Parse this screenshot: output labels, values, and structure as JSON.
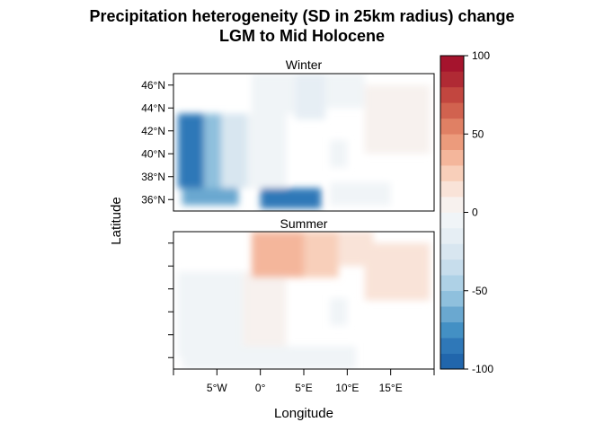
{
  "chart_data": {
    "type": "heatmap",
    "title_line1": "Precipitation heterogeneity (SD in 25km radius) change",
    "title_line2": "LGM to Mid Holocene",
    "xlabel": "Longitude",
    "ylabel": "Latitude",
    "xlim": [
      -10,
      20
    ],
    "ylim": [
      35,
      47
    ],
    "x_ticks": [
      {
        "value": -5,
        "label": "5°W"
      },
      {
        "value": 0,
        "label": "0°"
      },
      {
        "value": 5,
        "label": "5°E"
      },
      {
        "value": 10,
        "label": "10°E"
      },
      {
        "value": 15,
        "label": "15°E"
      }
    ],
    "y_ticks": [
      {
        "value": 36,
        "label": "36°N"
      },
      {
        "value": 38,
        "label": "38°N"
      },
      {
        "value": 40,
        "label": "40°N"
      },
      {
        "value": 42,
        "label": "42°N"
      },
      {
        "value": 44,
        "label": "44°N"
      },
      {
        "value": 46,
        "label": "46°N"
      }
    ],
    "panels": [
      {
        "name": "Winter",
        "regions": [
          {
            "lon": [
              -9.5,
              -6.5
            ],
            "lat": [
              37.0,
              43.5
            ],
            "value": -85
          },
          {
            "lon": [
              -6.5,
              -4.5
            ],
            "lat": [
              37.0,
              43.5
            ],
            "value": -60
          },
          {
            "lon": [
              -4.5,
              -1.5
            ],
            "lat": [
              37.0,
              43.5
            ],
            "value": -25
          },
          {
            "lon": [
              -1.5,
              3.0
            ],
            "lat": [
              37.0,
              43.5
            ],
            "value": -10
          },
          {
            "lon": [
              -9.0,
              -2.5
            ],
            "lat": [
              35.5,
              37.0
            ],
            "value": -70
          },
          {
            "lon": [
              0.0,
              7.0
            ],
            "lat": [
              35.2,
              37.0
            ],
            "value": -85
          },
          {
            "lon": [
              -1.0,
              4.0
            ],
            "lat": [
              43.5,
              47.0
            ],
            "value": -10
          },
          {
            "lon": [
              4.0,
              7.5
            ],
            "lat": [
              43.0,
              47.0
            ],
            "value": -15
          },
          {
            "lon": [
              7.5,
              12.0
            ],
            "lat": [
              44.0,
              47.0
            ],
            "value": -8
          },
          {
            "lon": [
              8.0,
              10.0
            ],
            "lat": [
              38.8,
              41.2
            ],
            "value": -5
          },
          {
            "lon": [
              12.0,
              19.5
            ],
            "lat": [
              40.0,
              46.0
            ],
            "value": 5
          },
          {
            "lon": [
              8.0,
              15.0
            ],
            "lat": [
              35.5,
              37.5
            ],
            "value": -10
          }
        ]
      },
      {
        "name": "Summer",
        "regions": [
          {
            "lon": [
              -9.5,
              -2.0
            ],
            "lat": [
              36.0,
              43.5
            ],
            "value": -10
          },
          {
            "lon": [
              -2.0,
              3.0
            ],
            "lat": [
              36.0,
              43.5
            ],
            "value": 5
          },
          {
            "lon": [
              -1.0,
              5.0
            ],
            "lat": [
              43.0,
              47.0
            ],
            "value": 30
          },
          {
            "lon": [
              5.0,
              9.0
            ],
            "lat": [
              43.0,
              47.0
            ],
            "value": 20
          },
          {
            "lon": [
              9.0,
              13.0
            ],
            "lat": [
              44.0,
              47.0
            ],
            "value": 10
          },
          {
            "lon": [
              12.0,
              19.5
            ],
            "lat": [
              41.0,
              46.0
            ],
            "value": 15
          },
          {
            "lon": [
              8.0,
              10.0
            ],
            "lat": [
              38.8,
              41.2
            ],
            "value": -5
          },
          {
            "lon": [
              -9.0,
              11.0
            ],
            "lat": [
              35.0,
              37.0
            ],
            "value": -8
          }
        ]
      }
    ],
    "colorbar": {
      "min": -100,
      "max": 100,
      "step": 10,
      "labels": [
        "100",
        "50",
        "0",
        "-50",
        "-100"
      ],
      "label_values": [
        100,
        50,
        0,
        -50,
        -100
      ],
      "colors": [
        "#2166ac",
        "#2f78b8",
        "#4390c4",
        "#6aa8d0",
        "#8fc0dd",
        "#aed1e6",
        "#c7ddec",
        "#d8e6f0",
        "#e6eef4",
        "#f0f4f7",
        "#f7f1ee",
        "#f9e3d8",
        "#f8cfba",
        "#f4b69b",
        "#ec9b7c",
        "#e08064",
        "#d1624f",
        "#c2463f",
        "#b02a34",
        "#a5142d"
      ]
    },
    "grid": false,
    "legend": "right"
  }
}
